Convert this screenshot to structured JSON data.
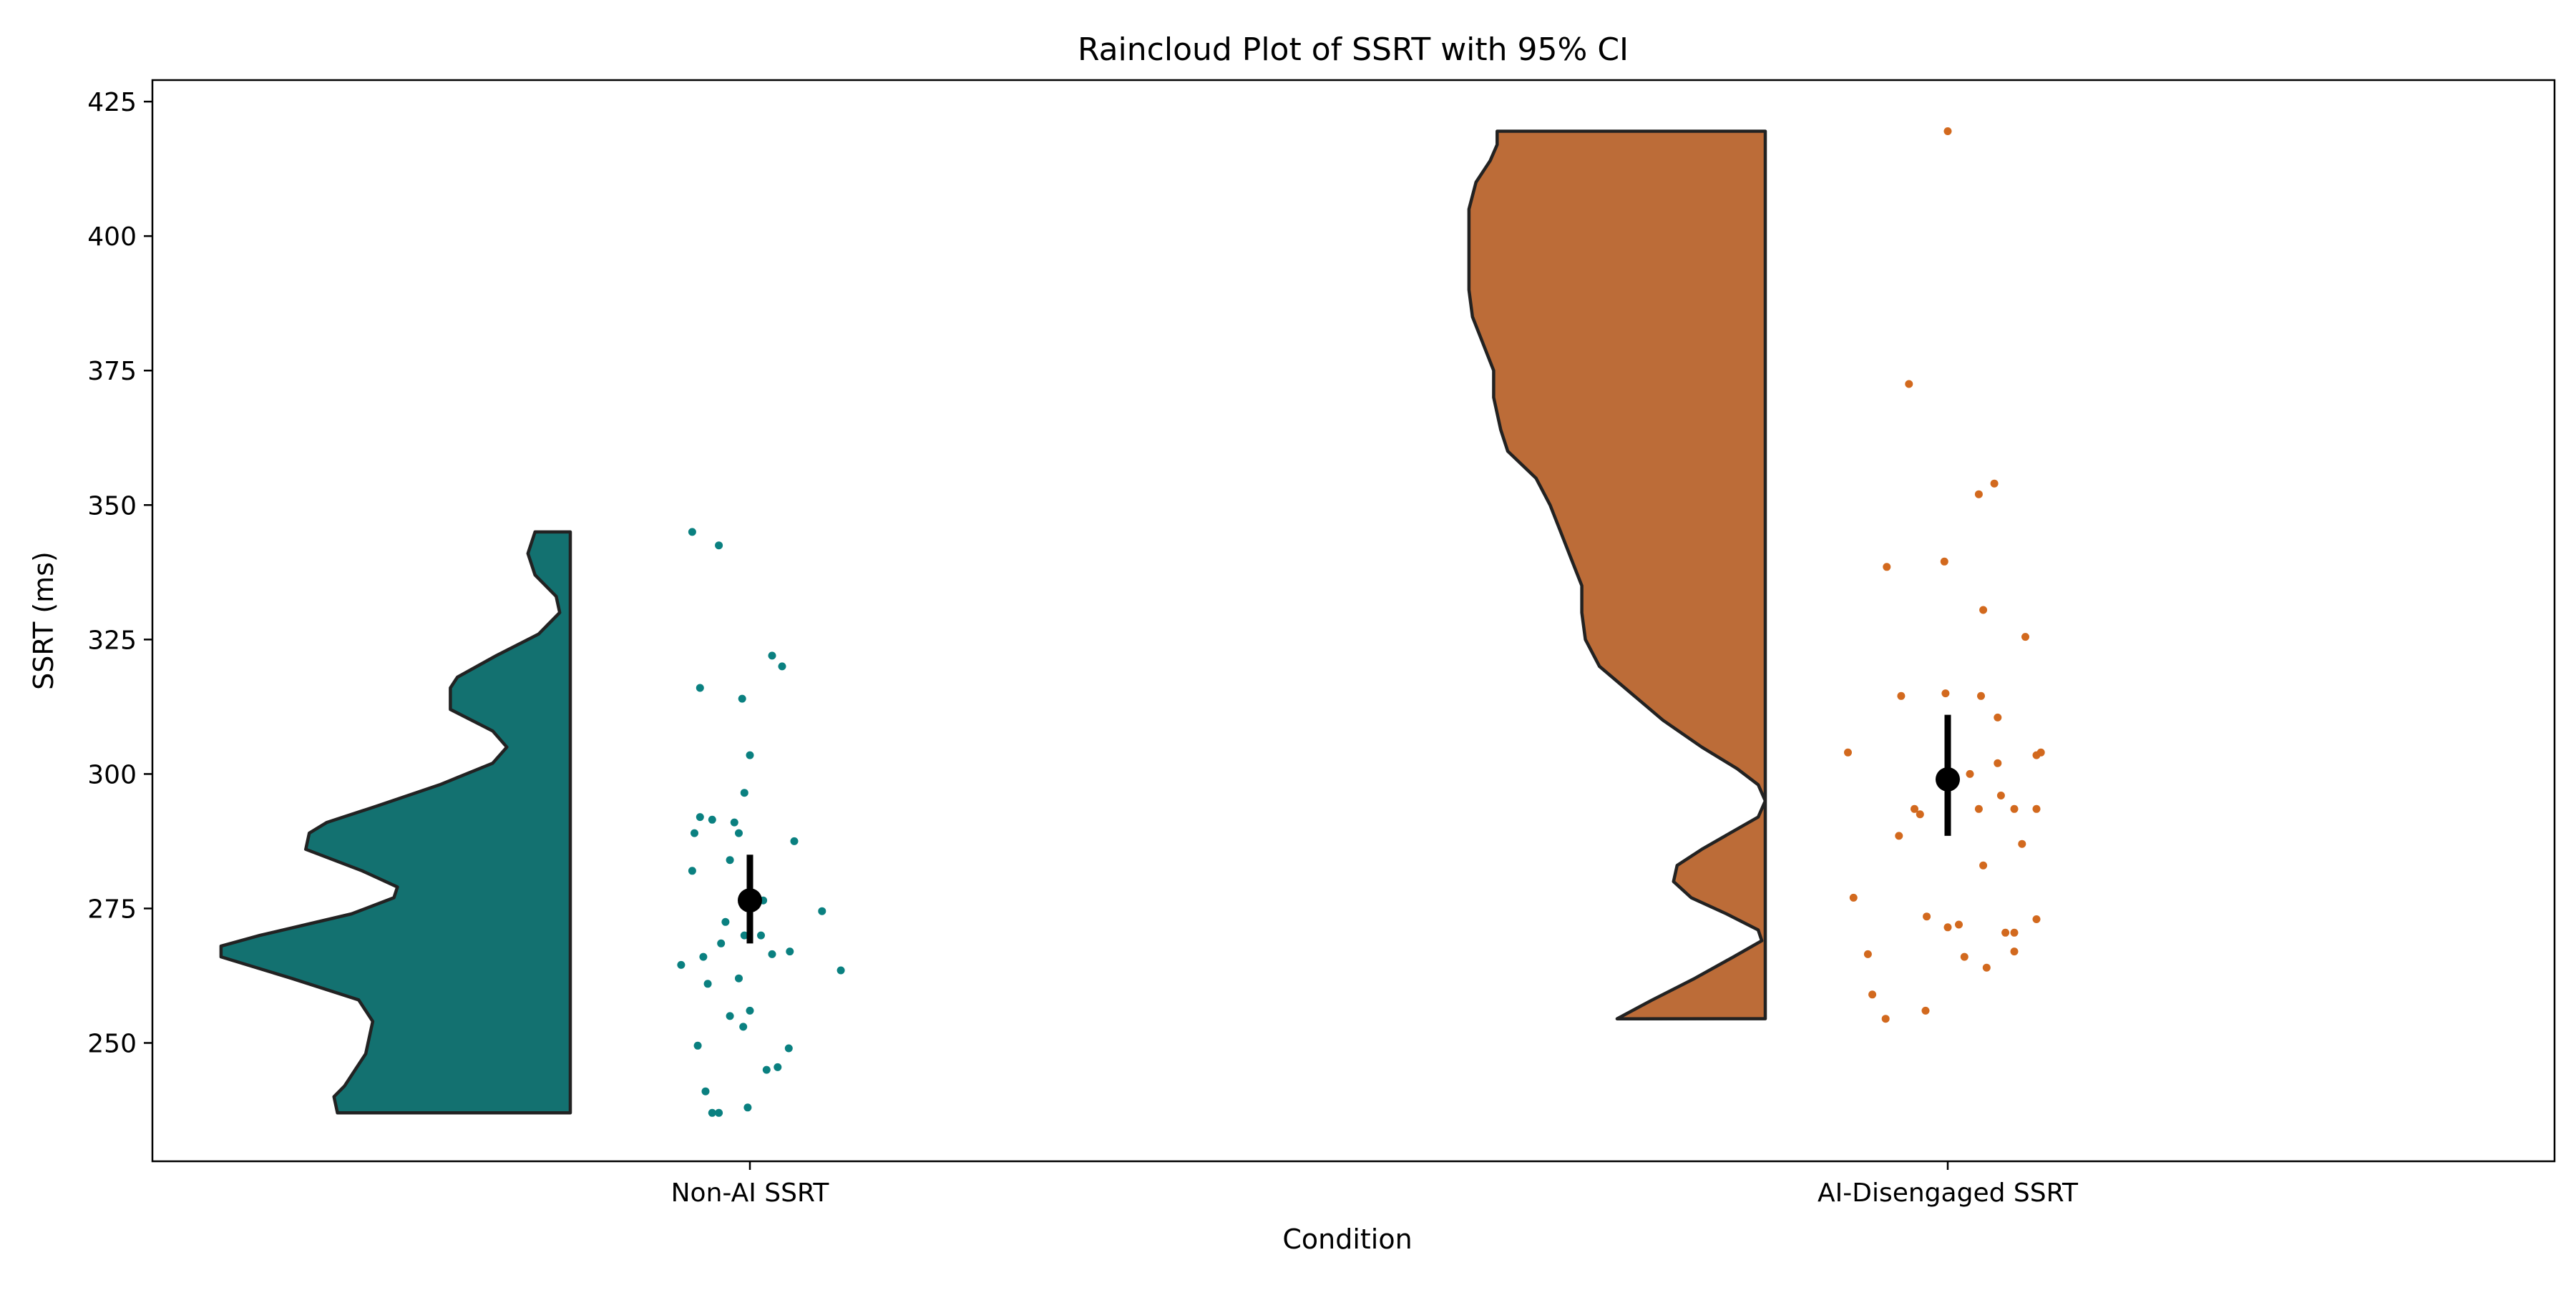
{
  "chart_data": {
    "type": "raincloud",
    "title": "Raincloud Plot of SSRT with 95% CI",
    "xlabel": "Condition",
    "ylabel": "SSRT (ms)",
    "ylim": [
      228,
      429
    ],
    "yticks": [
      250,
      275,
      300,
      325,
      350,
      375,
      400,
      425
    ],
    "categories": [
      "Non-AI SSRT",
      "AI-Disengaged SSRT"
    ],
    "grid": false,
    "legend": "none",
    "series": [
      {
        "category": "Non-AI SSRT",
        "color": "#137170",
        "point_color": "#0a8080",
        "min": 237,
        "max": 345,
        "mean": 276.5,
        "ci": [
          268.5,
          285
        ],
        "density": [
          [
            237,
            0.66
          ],
          [
            240,
            0.67
          ],
          [
            242,
            0.64
          ],
          [
            245,
            0.61
          ],
          [
            248,
            0.58
          ],
          [
            251,
            0.57
          ],
          [
            254,
            0.56
          ],
          [
            258,
            0.6
          ],
          [
            262,
            0.79
          ],
          [
            266,
            0.99
          ],
          [
            268,
            0.99
          ],
          [
            270,
            0.88
          ],
          [
            274,
            0.62
          ],
          [
            277,
            0.5
          ],
          [
            279,
            0.49
          ],
          [
            282,
            0.59
          ],
          [
            286,
            0.75
          ],
          [
            289,
            0.74
          ],
          [
            291,
            0.69
          ],
          [
            294,
            0.55
          ],
          [
            298,
            0.37
          ],
          [
            302,
            0.22
          ],
          [
            305,
            0.18
          ],
          [
            308,
            0.22
          ],
          [
            312,
            0.34
          ],
          [
            316,
            0.34
          ],
          [
            318,
            0.32
          ],
          [
            322,
            0.21
          ],
          [
            326,
            0.09
          ],
          [
            330,
            0.03
          ],
          [
            333,
            0.04
          ],
          [
            337,
            0.1
          ],
          [
            341,
            0.12
          ],
          [
            345,
            0.1
          ]
        ],
        "points": [
          [
            -0.52,
            345
          ],
          [
            -0.28,
            342.5
          ],
          [
            -0.45,
            316
          ],
          [
            -0.07,
            314
          ],
          [
            0.2,
            322
          ],
          [
            0.29,
            320
          ],
          [
            0.0,
            303.5
          ],
          [
            -0.45,
            292
          ],
          [
            -0.34,
            291.5
          ],
          [
            -0.14,
            291
          ],
          [
            -0.5,
            289
          ],
          [
            -0.05,
            296.5
          ],
          [
            -0.1,
            289
          ],
          [
            0.4,
            287.5
          ],
          [
            -0.18,
            284
          ],
          [
            -0.52,
            282
          ],
          [
            -0.05,
            277.5
          ],
          [
            0.12,
            276.5
          ],
          [
            0.65,
            274.5
          ],
          [
            -0.22,
            272.5
          ],
          [
            -0.05,
            270
          ],
          [
            0.1,
            270
          ],
          [
            -0.26,
            268.5
          ],
          [
            0.2,
            266.5
          ],
          [
            0.36,
            267
          ],
          [
            -0.42,
            266
          ],
          [
            -0.62,
            264.5
          ],
          [
            0.82,
            263.5
          ],
          [
            -0.38,
            261
          ],
          [
            -0.1,
            262
          ],
          [
            -0.18,
            255
          ],
          [
            0.0,
            256
          ],
          [
            -0.06,
            253
          ],
          [
            0.35,
            249
          ],
          [
            -0.47,
            249.5
          ],
          [
            0.15,
            245
          ],
          [
            0.25,
            245.5
          ],
          [
            -0.4,
            241
          ],
          [
            -0.34,
            237
          ],
          [
            -0.28,
            237
          ],
          [
            -0.02,
            238
          ]
        ]
      },
      {
        "category": "AI-Disengaged SSRT",
        "color": "#bc6c38",
        "point_color": "#d2691e",
        "min": 254.5,
        "max": 419.5,
        "mean": 299,
        "ci": [
          288.5,
          311
        ],
        "density": [
          [
            254.5,
            0.42
          ],
          [
            258,
            0.32
          ],
          [
            262,
            0.2
          ],
          [
            266,
            0.09
          ],
          [
            269,
            0.01
          ],
          [
            271,
            0.02
          ],
          [
            274,
            0.11
          ],
          [
            277,
            0.21
          ],
          [
            280,
            0.26
          ],
          [
            283,
            0.25
          ],
          [
            286,
            0.18
          ],
          [
            289,
            0.1
          ],
          [
            292,
            0.02
          ],
          [
            295,
            0.0
          ],
          [
            298,
            0.02
          ],
          [
            301,
            0.08
          ],
          [
            305,
            0.18
          ],
          [
            310,
            0.29
          ],
          [
            315,
            0.38
          ],
          [
            320,
            0.47
          ],
          [
            325,
            0.51
          ],
          [
            330,
            0.52
          ],
          [
            335,
            0.52
          ],
          [
            340,
            0.55
          ],
          [
            345,
            0.58
          ],
          [
            350,
            0.61
          ],
          [
            355,
            0.65
          ],
          [
            360,
            0.73
          ],
          [
            364,
            0.75
          ],
          [
            370,
            0.77
          ],
          [
            375,
            0.77
          ],
          [
            380,
            0.8
          ],
          [
            385,
            0.83
          ],
          [
            390,
            0.84
          ],
          [
            395,
            0.84
          ],
          [
            400,
            0.84
          ],
          [
            405,
            0.84
          ],
          [
            410,
            0.82
          ],
          [
            414,
            0.78
          ],
          [
            417,
            0.76
          ],
          [
            419.5,
            0.76
          ]
        ],
        "points": [
          [
            0.0,
            419.5
          ],
          [
            -0.35,
            372.5
          ],
          [
            0.42,
            354
          ],
          [
            0.28,
            352
          ],
          [
            -0.03,
            339.5
          ],
          [
            -0.55,
            338.5
          ],
          [
            0.32,
            330.5
          ],
          [
            0.7,
            325.5
          ],
          [
            -0.42,
            314.5
          ],
          [
            -0.02,
            315
          ],
          [
            0.3,
            314.5
          ],
          [
            0.45,
            310.5
          ],
          [
            -0.9,
            304
          ],
          [
            0.84,
            304
          ],
          [
            0.8,
            303.5
          ],
          [
            0.45,
            302
          ],
          [
            0.2,
            300
          ],
          [
            0.48,
            296
          ],
          [
            -0.3,
            293.5
          ],
          [
            -0.25,
            292.5
          ],
          [
            0.28,
            293.5
          ],
          [
            0.6,
            293.5
          ],
          [
            0.8,
            293.5
          ],
          [
            -0.44,
            288.5
          ],
          [
            0.67,
            287
          ],
          [
            0.32,
            283
          ],
          [
            -0.85,
            277
          ],
          [
            -0.19,
            273.5
          ],
          [
            0.1,
            272
          ],
          [
            0.0,
            271.5
          ],
          [
            0.8,
            273
          ],
          [
            0.52,
            270.5
          ],
          [
            0.6,
            270.5
          ],
          [
            0.6,
            267
          ],
          [
            -0.72,
            266.5
          ],
          [
            0.15,
            266
          ],
          [
            0.35,
            264
          ],
          [
            -0.68,
            259
          ],
          [
            -0.56,
            254.5
          ],
          [
            -0.2,
            256
          ]
        ]
      }
    ]
  }
}
